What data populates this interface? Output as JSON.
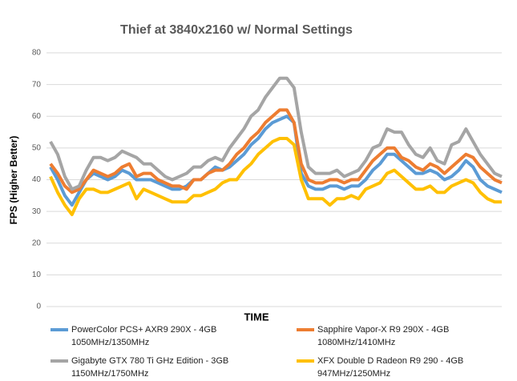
{
  "chart_data": {
    "type": "line",
    "title": "Thief at 3840x2160 w/ Normal Settings",
    "x_label": "TIME",
    "y_label": "FPS (Higher Better)",
    "categories": [
      null,
      null,
      null,
      null,
      null,
      null,
      null,
      null,
      null,
      null,
      null,
      null,
      null,
      null,
      null,
      null,
      null,
      null,
      null,
      null,
      null,
      null,
      null,
      null,
      null,
      null,
      null,
      null,
      null,
      null,
      null,
      null,
      null,
      null,
      null,
      null,
      null,
      null,
      null,
      null,
      null,
      null,
      null,
      null,
      null,
      null,
      null,
      null,
      null,
      null,
      null,
      null,
      null,
      null,
      null,
      null,
      null,
      null,
      null,
      null,
      null,
      null,
      null,
      null
    ],
    "series": [
      {
        "name": "PowerColor PCS+ AXR9 290X - 4GB\n1050MHz/1350MHz",
        "color": "#5b9bd5",
        "values": [
          44,
          40,
          35,
          32,
          36,
          40,
          42,
          41,
          40,
          41,
          43,
          42,
          40,
          40,
          40,
          39,
          38,
          37,
          37,
          38,
          40,
          40,
          42,
          44,
          43,
          44,
          46,
          48,
          51,
          53,
          56,
          58,
          59,
          60,
          58,
          42,
          38,
          37,
          37,
          38,
          38,
          37,
          38,
          38,
          40,
          43,
          45,
          48,
          48,
          46,
          44,
          42,
          42,
          43,
          42,
          40,
          41,
          43,
          46,
          44,
          40,
          38,
          37,
          36
        ]
      },
      {
        "name": "Sapphire Vapor-X R9 290X - 4GB\n1080MHz/1410MHz",
        "color": "#ed7d31",
        "values": [
          45,
          42,
          38,
          36,
          37,
          40,
          43,
          42,
          41,
          42,
          44,
          45,
          41,
          42,
          42,
          40,
          39,
          38,
          38,
          37,
          40,
          40,
          42,
          43,
          43,
          45,
          48,
          50,
          53,
          55,
          58,
          60,
          62,
          62,
          58,
          45,
          40,
          39,
          39,
          40,
          40,
          39,
          40,
          40,
          43,
          46,
          48,
          50,
          50,
          47,
          46,
          44,
          43,
          45,
          44,
          42,
          44,
          46,
          48,
          47,
          44,
          42,
          40,
          39
        ]
      },
      {
        "name": "Gigabyte GTX 780 Ti GHz Edition - 3GB\n1150MHz/1750MHz",
        "color": "#a5a5a5",
        "values": [
          52,
          48,
          41,
          37,
          38,
          43,
          47,
          47,
          46,
          47,
          49,
          48,
          47,
          45,
          45,
          43,
          41,
          40,
          41,
          42,
          44,
          44,
          46,
          47,
          46,
          50,
          53,
          56,
          60,
          62,
          66,
          69,
          72,
          72,
          69,
          55,
          44,
          42,
          42,
          42,
          43,
          41,
          42,
          43,
          46,
          50,
          51,
          56,
          55,
          55,
          51,
          48,
          47,
          50,
          46,
          45,
          51,
          52,
          56,
          52,
          48,
          45,
          42,
          41
        ]
      },
      {
        "name": "XFX Double D Radeon R9 290 - 4GB\n947MHz/1250MHz",
        "color": "#ffc000",
        "values": [
          41,
          36,
          32,
          29,
          34,
          37,
          37,
          36,
          36,
          37,
          38,
          39,
          34,
          37,
          36,
          35,
          34,
          33,
          33,
          33,
          35,
          35,
          36,
          37,
          39,
          40,
          40,
          43,
          45,
          48,
          50,
          52,
          53,
          53,
          51,
          40,
          34,
          34,
          34,
          32,
          34,
          34,
          35,
          34,
          37,
          38,
          39,
          42,
          43,
          41,
          39,
          37,
          37,
          38,
          36,
          36,
          38,
          39,
          40,
          39,
          36,
          34,
          33,
          33
        ]
      }
    ],
    "ylim": [
      0,
      80
    ],
    "yticks": [
      0,
      10,
      20,
      30,
      40,
      50,
      60,
      70,
      80
    ],
    "grid": true
  }
}
